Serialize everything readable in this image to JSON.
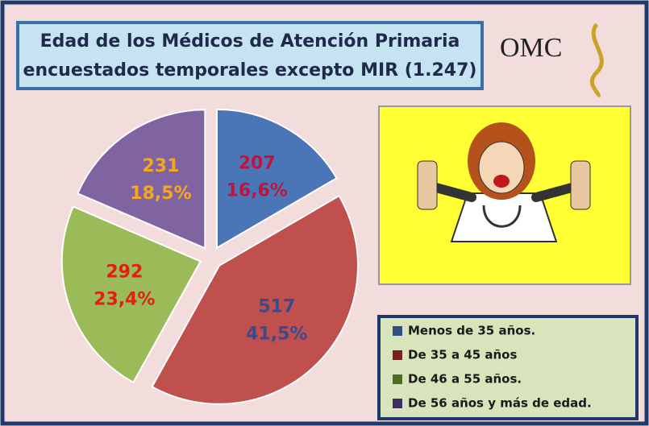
{
  "chart_data": {
    "type": "pie",
    "title": [
      "Edad de los Médicos de Atención Primaria",
      "encuestados temporales excepto MIR (1.247)"
    ],
    "logo": "OMC",
    "categories": [
      "Menos de 35 años.",
      "De 35 a 45 años",
      "De 46 a 55 años.",
      "De 56 años y más de edad."
    ],
    "values": [
      207,
      517,
      292,
      231
    ],
    "percent_labels": [
      "16,6%",
      "41,5%",
      "23,4%",
      "18,5%"
    ],
    "colors": [
      "#4a76b8",
      "#c0504d",
      "#9bbb59",
      "#8064a2"
    ],
    "label_colors": [
      "#c0143c",
      "#3b4a8a",
      "#e02010",
      "#f5a623"
    ],
    "legend_colors": [
      "#2f4f80",
      "#7a2020",
      "#4f6b1f",
      "#3f2f60"
    ]
  }
}
